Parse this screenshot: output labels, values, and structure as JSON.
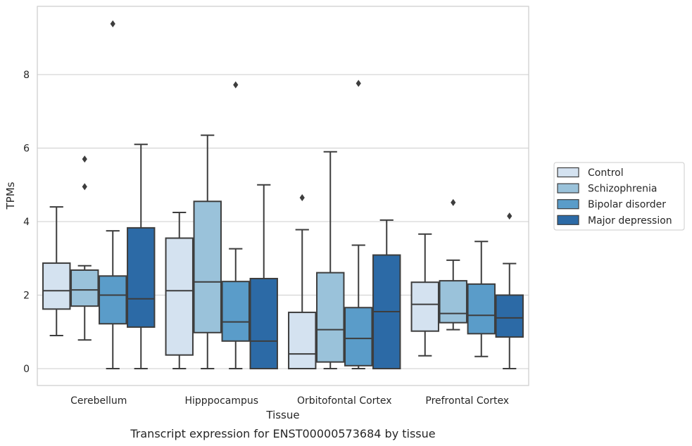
{
  "chart_data": {
    "type": "box",
    "title": "Transcript expression for ENST00000573684 by tissue",
    "xlabel": "Tissue",
    "ylabel": "TPMs",
    "ylim": [
      -0.45,
      9.9
    ],
    "yticks": [
      0,
      2,
      4,
      6,
      8
    ],
    "grid": "horizontal",
    "legend_position": "right",
    "categories": [
      "Cerebellum",
      "Hipppocampus",
      "Orbitofontal Cortex",
      "Prefrontal Cortex"
    ],
    "series": [
      {
        "name": "Control",
        "color": "#d4e2f0",
        "boxes": [
          {
            "whislo": 0.9,
            "q1": 1.62,
            "med": 2.12,
            "q3": 2.87,
            "whishi": 4.4,
            "fliers": []
          },
          {
            "whislo": 0.0,
            "q1": 0.37,
            "med": 2.12,
            "q3": 3.55,
            "whishi": 4.25,
            "fliers": []
          },
          {
            "whislo": 0.0,
            "q1": 0.0,
            "med": 0.4,
            "q3": 1.53,
            "whishi": 3.78,
            "fliers": [
              4.65
            ]
          },
          {
            "whislo": 0.35,
            "q1": 1.02,
            "med": 1.75,
            "q3": 2.35,
            "whishi": 3.66,
            "fliers": []
          }
        ]
      },
      {
        "name": "Schizophrenia",
        "color": "#9ac2da",
        "boxes": [
          {
            "whislo": 0.78,
            "q1": 1.7,
            "med": 2.14,
            "q3": 2.68,
            "whishi": 2.8,
            "fliers": [
              5.7,
              4.95
            ]
          },
          {
            "whislo": 0.0,
            "q1": 0.98,
            "med": 2.36,
            "q3": 4.55,
            "whishi": 6.35,
            "fliers": []
          },
          {
            "whislo": 0.0,
            "q1": 0.18,
            "med": 1.06,
            "q3": 2.61,
            "whishi": 5.9,
            "fliers": []
          },
          {
            "whislo": 1.06,
            "q1": 1.25,
            "med": 1.5,
            "q3": 2.39,
            "whishi": 2.95,
            "fliers": [
              4.52
            ]
          }
        ]
      },
      {
        "name": "Bipolar disorder",
        "color": "#5a9cc9",
        "boxes": [
          {
            "whislo": 0.0,
            "q1": 1.22,
            "med": 2.0,
            "q3": 2.52,
            "whishi": 3.75,
            "fliers": [
              9.38
            ]
          },
          {
            "whislo": 0.0,
            "q1": 0.75,
            "med": 1.27,
            "q3": 2.37,
            "whishi": 3.26,
            "fliers": [
              7.72
            ]
          },
          {
            "whislo": 0.0,
            "q1": 0.08,
            "med": 0.82,
            "q3": 1.66,
            "whishi": 3.36,
            "fliers": [
              7.76
            ]
          },
          {
            "whislo": 0.33,
            "q1": 0.95,
            "med": 1.45,
            "q3": 2.3,
            "whishi": 3.46,
            "fliers": []
          }
        ]
      },
      {
        "name": "Major depression",
        "color": "#2c6aa6",
        "boxes": [
          {
            "whislo": 0.0,
            "q1": 1.13,
            "med": 1.9,
            "q3": 3.83,
            "whishi": 6.1,
            "fliers": []
          },
          {
            "whislo": 0.0,
            "q1": 0.0,
            "med": 0.75,
            "q3": 2.45,
            "whishi": 5.0,
            "fliers": []
          },
          {
            "whislo": 0.0,
            "q1": 0.0,
            "med": 1.55,
            "q3": 3.09,
            "whishi": 4.04,
            "fliers": []
          },
          {
            "whislo": 0.0,
            "q1": 0.86,
            "med": 1.38,
            "q3": 2.0,
            "whishi": 2.86,
            "fliers": [
              4.15
            ]
          }
        ]
      }
    ]
  }
}
